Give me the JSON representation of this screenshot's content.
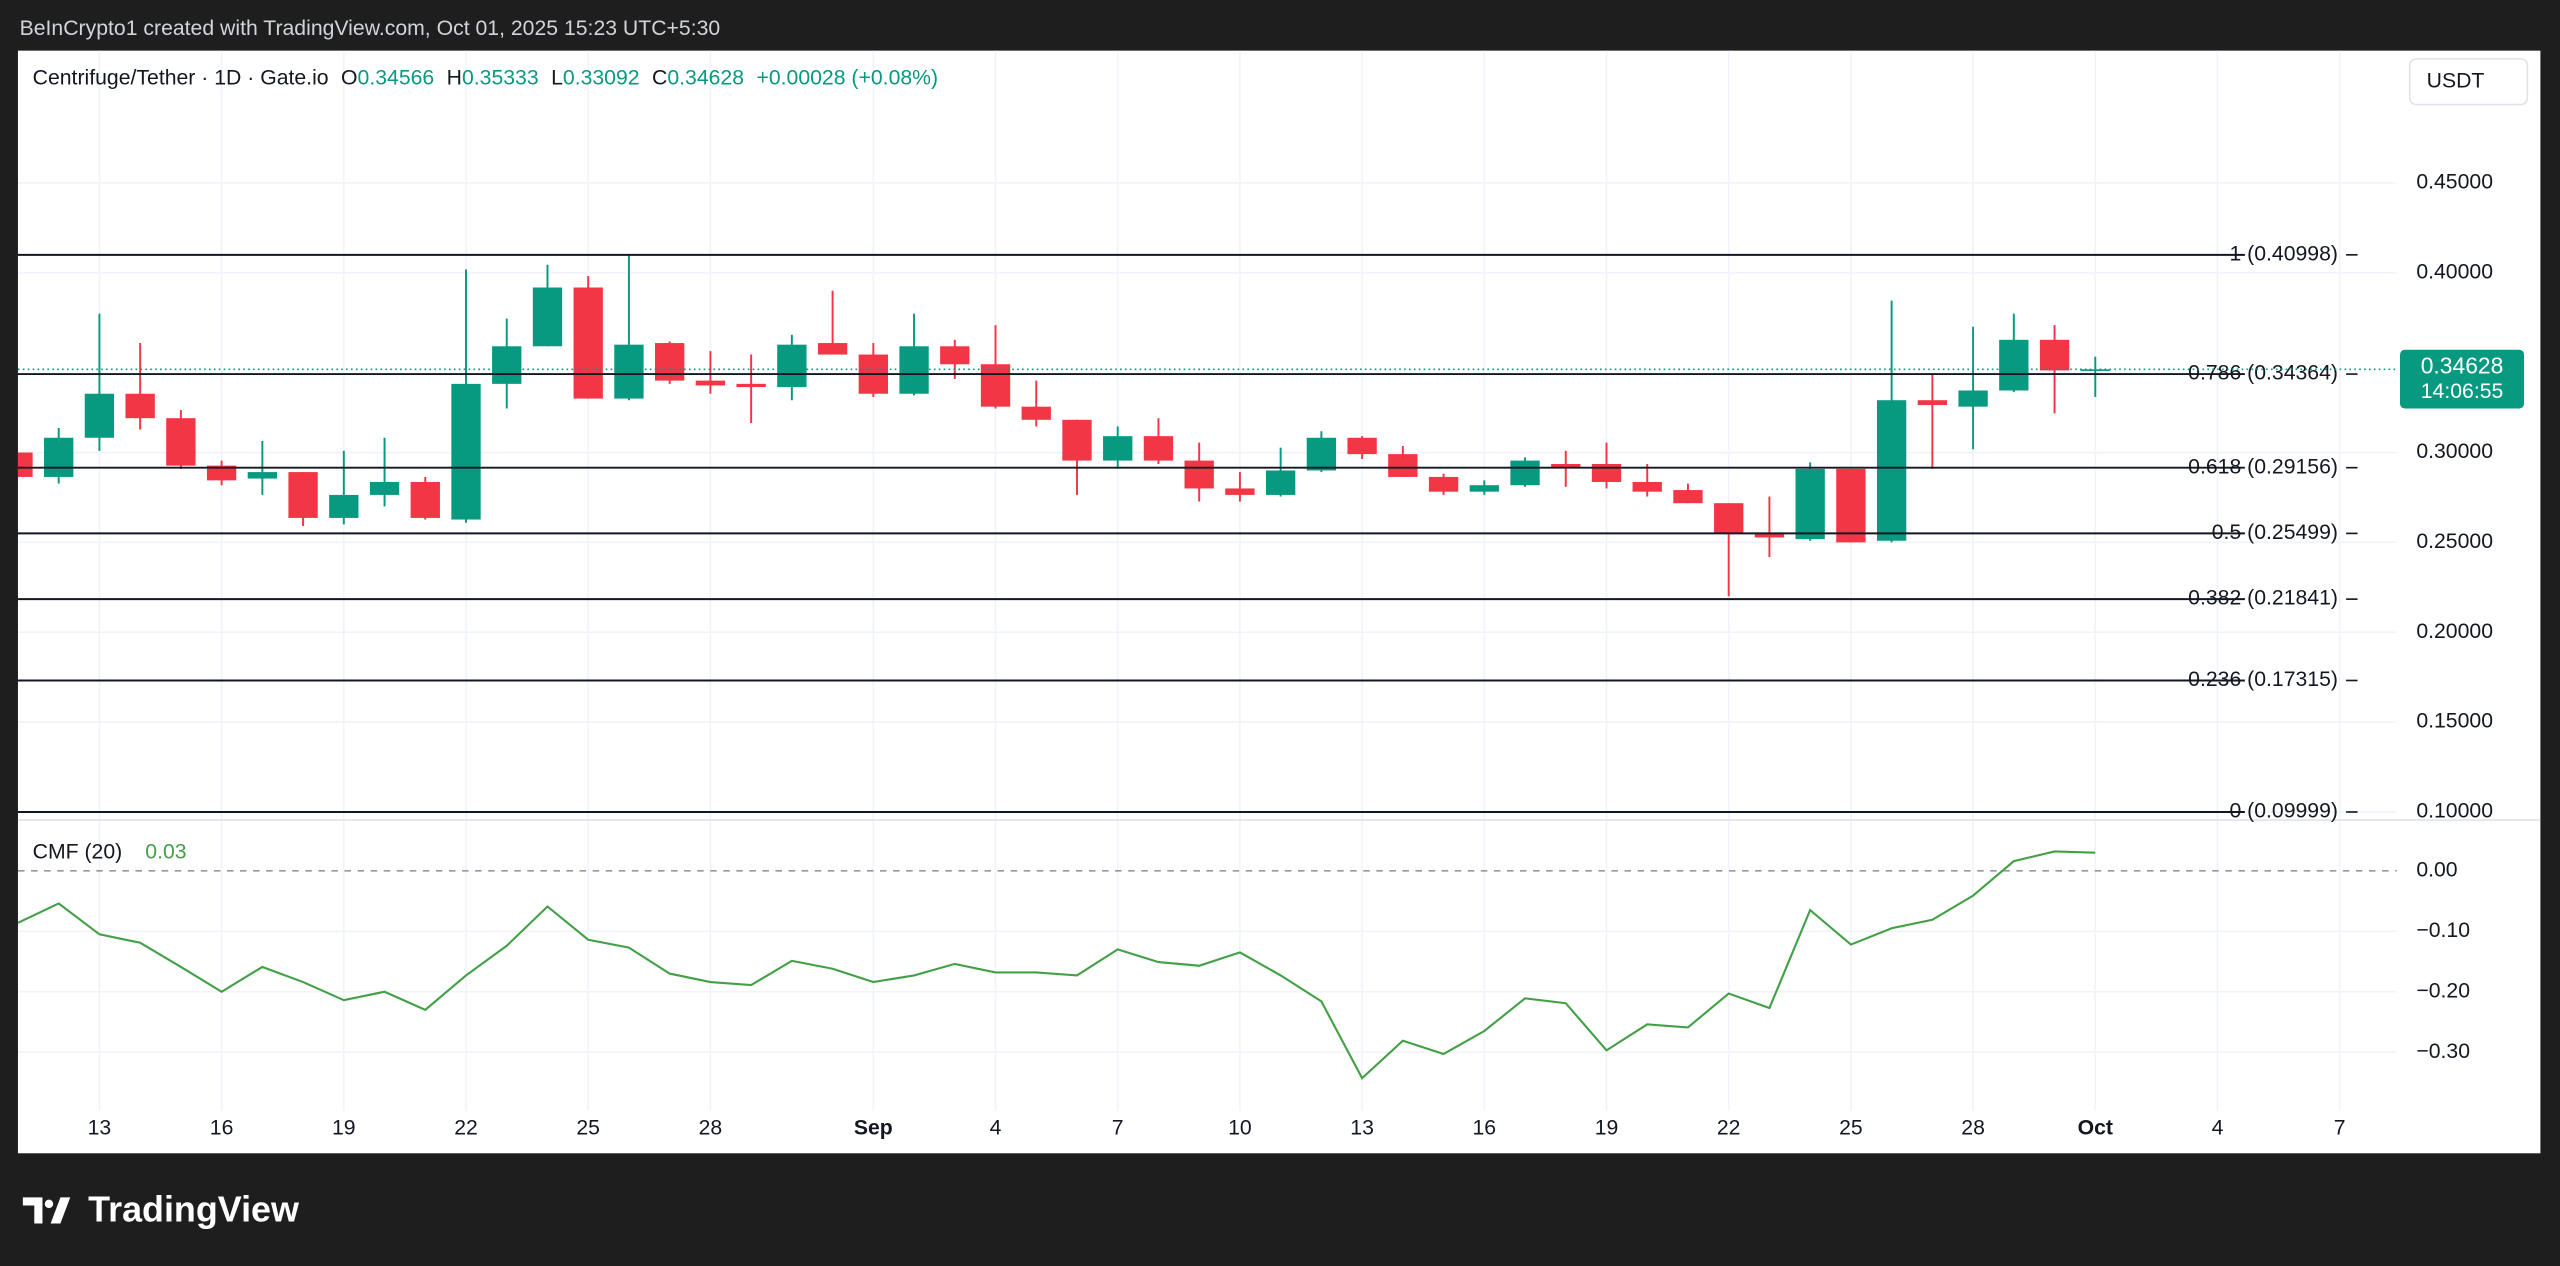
{
  "header": {
    "attribution": "BeInCrypto1 created with TradingView.com, Oct 01, 2025 15:23 UTC+5:30",
    "ohlc_labels": [
      "O",
      "H",
      "L",
      "C"
    ],
    "change": {
      "value": 0.00028,
      "label": "+0.00028"
    },
    "change_percent": {
      "value": 0.08,
      "label": "(+0.08%)"
    }
  },
  "footer": {
    "brand": "TradingView"
  },
  "chart_data": [
    {
      "type": "candlestick",
      "title": "Centrifuge/Tether · 1D · Gate.io",
      "currency": "USDT",
      "countdown": "14:06:55",
      "up_color": "#089981",
      "down_color": "#f23645",
      "grid": true,
      "x": [
        "2025-08-11",
        "2025-08-12",
        "2025-08-13",
        "2025-08-14",
        "2025-08-15",
        "2025-08-16",
        "2025-08-17",
        "2025-08-18",
        "2025-08-19",
        "2025-08-20",
        "2025-08-21",
        "2025-08-22",
        "2025-08-23",
        "2025-08-24",
        "2025-08-25",
        "2025-08-26",
        "2025-08-27",
        "2025-08-28",
        "2025-08-29",
        "2025-08-30",
        "2025-08-31",
        "2025-09-01",
        "2025-09-02",
        "2025-09-03",
        "2025-09-04",
        "2025-09-05",
        "2025-09-06",
        "2025-09-07",
        "2025-09-08",
        "2025-09-09",
        "2025-09-10",
        "2025-09-11",
        "2025-09-12",
        "2025-09-13",
        "2025-09-14",
        "2025-09-15",
        "2025-09-16",
        "2025-09-17",
        "2025-09-18",
        "2025-09-19",
        "2025-09-20",
        "2025-09-21",
        "2025-09-22",
        "2025-09-23",
        "2025-09-24",
        "2025-09-25",
        "2025-09-26",
        "2025-09-27",
        "2025-09-28",
        "2025-09-29",
        "2025-09-30",
        "2025-10-01"
      ],
      "open": [
        0.3,
        0.2864,
        0.3082,
        0.3327,
        0.3191,
        0.2927,
        0.2855,
        0.2891,
        0.2636,
        0.2764,
        0.2836,
        0.2627,
        0.3382,
        0.3591,
        0.3918,
        0.33,
        0.3609,
        0.34,
        0.3382,
        0.3364,
        0.3609,
        0.3545,
        0.3327,
        0.3591,
        0.3491,
        0.3255,
        0.3182,
        0.2955,
        0.3091,
        0.2955,
        0.28,
        0.2764,
        0.29,
        0.3082,
        0.2991,
        0.2864,
        0.2782,
        0.2818,
        0.2936,
        0.2936,
        0.2836,
        0.2791,
        0.2718,
        0.2555,
        0.2518,
        0.2909,
        0.2509,
        0.3291,
        0.3255,
        0.3345,
        0.3627,
        0.34566
      ],
      "high": [
        0.3,
        0.3136,
        0.3773,
        0.3609,
        0.3236,
        0.2955,
        0.3064,
        0.2891,
        0.3009,
        0.3082,
        0.2864,
        0.4018,
        0.3745,
        0.4045,
        0.3982,
        0.41,
        0.3618,
        0.3564,
        0.3545,
        0.3655,
        0.39,
        0.3609,
        0.3773,
        0.3627,
        0.3709,
        0.34,
        0.3182,
        0.3145,
        0.3191,
        0.3055,
        0.2891,
        0.3027,
        0.3118,
        0.3091,
        0.3036,
        0.2882,
        0.2845,
        0.2973,
        0.3009,
        0.3055,
        0.2936,
        0.2827,
        0.2718,
        0.2755,
        0.2945,
        0.2909,
        0.3845,
        0.3436,
        0.37,
        0.3773,
        0.3709,
        0.35333
      ],
      "low": [
        0.2864,
        0.2827,
        0.3009,
        0.3127,
        0.2909,
        0.2818,
        0.2764,
        0.2591,
        0.26,
        0.27,
        0.2627,
        0.2609,
        0.3245,
        0.3591,
        0.33,
        0.3291,
        0.3382,
        0.3327,
        0.3164,
        0.3291,
        0.3545,
        0.3309,
        0.3318,
        0.3409,
        0.3245,
        0.3145,
        0.2764,
        0.2909,
        0.2936,
        0.2727,
        0.2727,
        0.2755,
        0.2891,
        0.2964,
        0.2864,
        0.2764,
        0.2764,
        0.2809,
        0.2809,
        0.28,
        0.2755,
        0.2718,
        0.22,
        0.2418,
        0.2509,
        0.25,
        0.25,
        0.2909,
        0.3018,
        0.3336,
        0.3218,
        0.33092
      ],
      "close": [
        0.2864,
        0.3082,
        0.3327,
        0.3191,
        0.2927,
        0.2845,
        0.2891,
        0.2636,
        0.2764,
        0.2836,
        0.2636,
        0.3382,
        0.3591,
        0.3918,
        0.33,
        0.36,
        0.34,
        0.3373,
        0.3364,
        0.36,
        0.3545,
        0.3327,
        0.3591,
        0.3491,
        0.3255,
        0.3182,
        0.2955,
        0.3091,
        0.2955,
        0.28,
        0.2764,
        0.29,
        0.3082,
        0.2991,
        0.2864,
        0.2782,
        0.2818,
        0.2955,
        0.2918,
        0.2836,
        0.2782,
        0.2718,
        0.2555,
        0.2527,
        0.2909,
        0.25,
        0.3291,
        0.3264,
        0.3345,
        0.3627,
        0.34566,
        0.34628
      ],
      "fib_levels": {
        "color": "#131722",
        "values": [
          0.40998,
          0.34364,
          0.29156,
          0.25499,
          0.21841,
          0.17315,
          0.09999
        ],
        "value_labels": [
          "1 (0.40998)",
          "0.786 (0.34364)",
          "0.618 (0.29156)",
          "0.5 (0.25499)",
          "0.382 (0.21841)",
          "0.236 (0.17315)",
          "0 (0.09999)"
        ]
      },
      "xlim": [
        "2025-08-11",
        "2025-10-08"
      ],
      "xticks": [
        {
          "value": "2025-08-13",
          "label": "13"
        },
        {
          "value": "2025-08-16",
          "label": "16"
        },
        {
          "value": "2025-08-19",
          "label": "19"
        },
        {
          "value": "2025-08-22",
          "label": "22"
        },
        {
          "value": "2025-08-25",
          "label": "25"
        },
        {
          "value": "2025-08-28",
          "label": "28"
        },
        {
          "value": "2025-09-01",
          "label": "Sep"
        },
        {
          "value": "2025-09-04",
          "label": "4"
        },
        {
          "value": "2025-09-07",
          "label": "7"
        },
        {
          "value": "2025-09-10",
          "label": "10"
        },
        {
          "value": "2025-09-13",
          "label": "13"
        },
        {
          "value": "2025-09-16",
          "label": "16"
        },
        {
          "value": "2025-09-19",
          "label": "19"
        },
        {
          "value": "2025-09-22",
          "label": "22"
        },
        {
          "value": "2025-09-25",
          "label": "25"
        },
        {
          "value": "2025-09-28",
          "label": "28"
        },
        {
          "value": "2025-10-01",
          "label": "Oct"
        },
        {
          "value": "2025-10-04",
          "label": "4"
        },
        {
          "value": "2025-10-07",
          "label": "7"
        }
      ],
      "ylim": [
        0.0955,
        0.5236
      ],
      "yticks": [
        {
          "value": 0.1,
          "label": "0.10000"
        },
        {
          "value": 0.15,
          "label": "0.15000"
        },
        {
          "value": 0.2,
          "label": "0.20000"
        },
        {
          "value": 0.25,
          "label": "0.25000"
        },
        {
          "value": 0.3,
          "label": "0.30000"
        },
        {
          "value": 0.4,
          "label": "0.40000"
        },
        {
          "value": 0.45,
          "label": "0.45000"
        }
      ]
    },
    {
      "type": "line",
      "zero_line": true,
      "grid": true,
      "x": [
        "2025-08-11",
        "2025-08-12",
        "2025-08-13",
        "2025-08-14",
        "2025-08-15",
        "2025-08-16",
        "2025-08-17",
        "2025-08-18",
        "2025-08-19",
        "2025-08-20",
        "2025-08-21",
        "2025-08-22",
        "2025-08-23",
        "2025-08-24",
        "2025-08-25",
        "2025-08-26",
        "2025-08-27",
        "2025-08-28",
        "2025-08-29",
        "2025-08-30",
        "2025-08-31",
        "2025-09-01",
        "2025-09-02",
        "2025-09-03",
        "2025-09-04",
        "2025-09-05",
        "2025-09-06",
        "2025-09-07",
        "2025-09-08",
        "2025-09-09",
        "2025-09-10",
        "2025-09-11",
        "2025-09-12",
        "2025-09-13",
        "2025-09-14",
        "2025-09-15",
        "2025-09-16",
        "2025-09-17",
        "2025-09-18",
        "2025-09-19",
        "2025-09-20",
        "2025-09-21",
        "2025-09-22",
        "2025-09-23",
        "2025-09-24",
        "2025-09-25",
        "2025-09-26",
        "2025-09-27",
        "2025-09-28",
        "2025-09-29",
        "2025-09-30",
        "2025-10-01"
      ],
      "series": [
        {
          "name": "CMF (20)",
          "color": "#43a047",
          "values": [
            -0.086,
            -0.054,
            -0.105,
            -0.119,
            -0.159,
            -0.2,
            -0.159,
            -0.184,
            -0.214,
            -0.2,
            -0.23,
            -0.173,
            -0.124,
            -0.059,
            -0.114,
            -0.127,
            -0.17,
            -0.184,
            -0.189,
            -0.149,
            -0.162,
            -0.184,
            -0.173,
            -0.154,
            -0.168,
            -0.168,
            -0.173,
            -0.13,
            -0.151,
            -0.157,
            -0.135,
            -0.173,
            -0.216,
            -0.343,
            -0.281,
            -0.303,
            -0.265,
            -0.211,
            -0.219,
            -0.297,
            -0.254,
            -0.259,
            -0.203,
            -0.227,
            -0.065,
            -0.122,
            -0.095,
            -0.081,
            -0.041,
            0.016,
            0.032,
            0.03
          ]
        }
      ],
      "ylim": [
        -0.397,
        0.084
      ],
      "yticks": [
        {
          "value": 0,
          "label": "0.00"
        },
        {
          "value": -0.1,
          "label": "−0.10"
        },
        {
          "value": -0.2,
          "label": "−0.20"
        },
        {
          "value": -0.3,
          "label": "−0.30"
        }
      ]
    }
  ]
}
